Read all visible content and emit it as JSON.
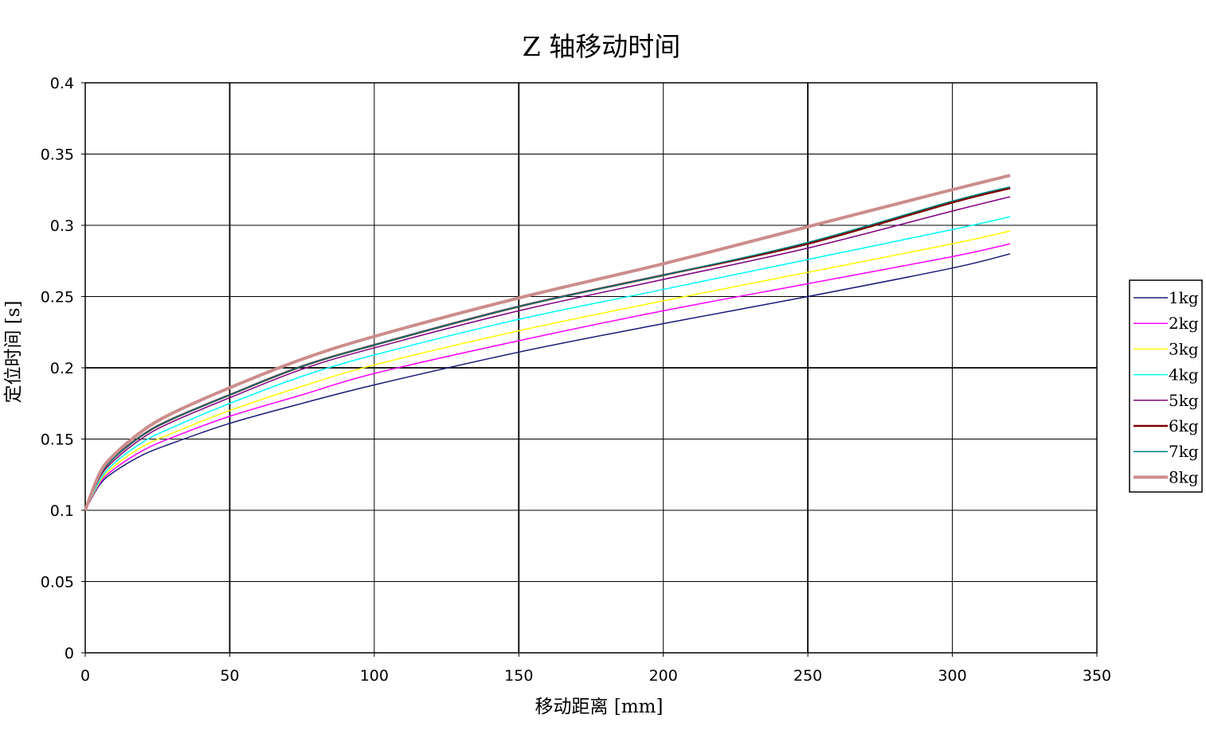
{
  "chart_data": {
    "type": "line",
    "title": "Z 轴移动时间",
    "xlabel": "移动距离 [mm]",
    "ylabel": "定位时间 [s]",
    "xlim": [
      0,
      350
    ],
    "ylim": [
      0,
      0.4
    ],
    "x_ticks": [
      "0",
      "50",
      "100",
      "150",
      "200",
      "250",
      "300",
      "350"
    ],
    "y_ticks": [
      "0",
      "0.05",
      "0.1",
      "0.15",
      "0.2",
      "0.25",
      "0.3",
      "0.35",
      "0.4"
    ],
    "grid": true,
    "legend_position": "right",
    "x": [
      0,
      5,
      10,
      20,
      30,
      50,
      75,
      100,
      150,
      200,
      250,
      300,
      320
    ],
    "series": [
      {
        "name": "1kg",
        "color": "#1a1a7a",
        "width": 1.5,
        "values": [
          0.1,
          0.118,
          0.127,
          0.139,
          0.147,
          0.161,
          0.175,
          0.188,
          0.211,
          0.231,
          0.25,
          0.27,
          0.28
        ]
      },
      {
        "name": "2kg",
        "color": "#ff00ff",
        "width": 1.5,
        "values": [
          0.1,
          0.119,
          0.129,
          0.142,
          0.151,
          0.166,
          0.181,
          0.196,
          0.219,
          0.24,
          0.259,
          0.278,
          0.287
        ]
      },
      {
        "name": "3kg",
        "color": "#ffff00",
        "width": 1.5,
        "values": [
          0.1,
          0.12,
          0.131,
          0.145,
          0.154,
          0.17,
          0.187,
          0.202,
          0.226,
          0.247,
          0.267,
          0.287,
          0.296
        ]
      },
      {
        "name": "4kg",
        "color": "#00ffff",
        "width": 1.5,
        "values": [
          0.1,
          0.121,
          0.133,
          0.148,
          0.158,
          0.175,
          0.194,
          0.209,
          0.234,
          0.255,
          0.276,
          0.297,
          0.306
        ]
      },
      {
        "name": "5kg",
        "color": "#800080",
        "width": 1.5,
        "values": [
          0.1,
          0.123,
          0.135,
          0.151,
          0.162,
          0.179,
          0.199,
          0.214,
          0.24,
          0.262,
          0.284,
          0.31,
          0.32
        ]
      },
      {
        "name": "6kg",
        "color": "#800000",
        "width": 2.5,
        "values": [
          0.1,
          0.124,
          0.137,
          0.153,
          0.164,
          0.181,
          0.201,
          0.216,
          0.243,
          0.265,
          0.287,
          0.316,
          0.326
        ]
      },
      {
        "name": "7kg",
        "color": "#008080",
        "width": 1.5,
        "values": [
          0.1,
          0.124,
          0.137,
          0.153,
          0.164,
          0.181,
          0.201,
          0.216,
          0.243,
          0.265,
          0.288,
          0.317,
          0.327
        ]
      },
      {
        "name": "8kg",
        "color": "#cc8c8c",
        "width": 4,
        "values": [
          0.1,
          0.126,
          0.139,
          0.156,
          0.168,
          0.186,
          0.206,
          0.222,
          0.249,
          0.273,
          0.299,
          0.325,
          0.335
        ]
      }
    ]
  }
}
